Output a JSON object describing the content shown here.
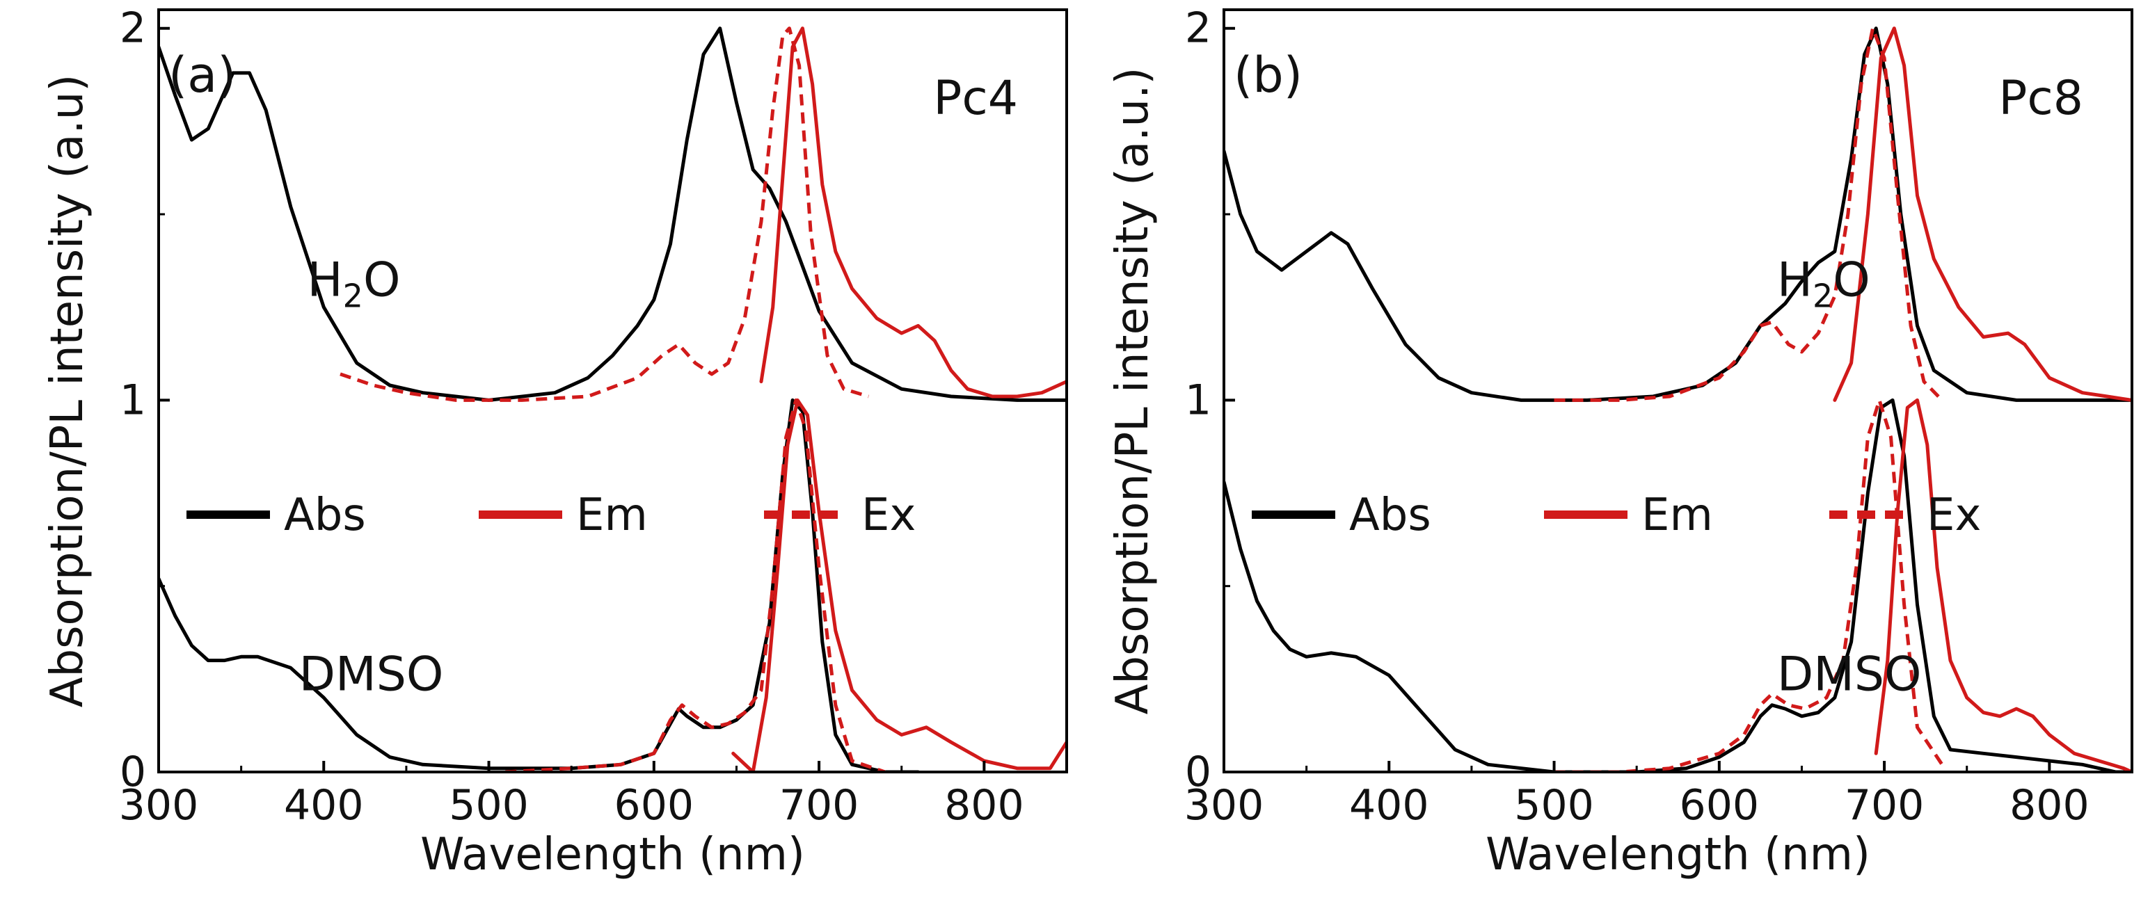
{
  "chart_data": [
    {
      "type": "line",
      "panel_label": "(a)",
      "sample": "Pc4",
      "xlabel": "Wavelength (nm)",
      "ylabel": "Absorption/PL intensity (a.u)",
      "xlim": [
        300,
        850
      ],
      "ylim": [
        0,
        2.05
      ],
      "xticks": [
        "300",
        "400",
        "500",
        "600",
        "700",
        "800"
      ],
      "yticks": [
        "0",
        "1",
        "2"
      ],
      "legend": {
        "placement": "middle-left",
        "entries": [
          {
            "label": "Abs",
            "color": "#000000",
            "dash": "solid"
          },
          {
            "label": "Em",
            "color": "#d11a1a",
            "dash": "solid"
          },
          {
            "label": "Ex",
            "color": "#d11a1a",
            "dash": "dashed"
          }
        ]
      },
      "annotations": [
        {
          "text": "H",
          "sub": "2",
          "tail": "O",
          "x": 390,
          "y": 1.28
        },
        {
          "text": "DMSO",
          "x": 385,
          "y": 0.22
        }
      ],
      "series": [
        {
          "name": "Abs H2O",
          "color": "#000000",
          "dash": "solid",
          "x": [
            300,
            310,
            320,
            330,
            345,
            355,
            365,
            380,
            400,
            420,
            440,
            460,
            500,
            540,
            560,
            575,
            590,
            600,
            610,
            620,
            630,
            640,
            650,
            660,
            670,
            680,
            690,
            700,
            720,
            750,
            780,
            820,
            850
          ],
          "y": [
            1.95,
            1.82,
            1.7,
            1.73,
            1.88,
            1.88,
            1.78,
            1.52,
            1.25,
            1.1,
            1.04,
            1.02,
            1.0,
            1.02,
            1.06,
            1.12,
            1.2,
            1.27,
            1.42,
            1.7,
            1.93,
            2.0,
            1.8,
            1.62,
            1.57,
            1.48,
            1.36,
            1.24,
            1.1,
            1.03,
            1.01,
            1.0,
            1.0
          ]
        },
        {
          "name": "Ex H2O",
          "color": "#d11a1a",
          "dash": "dashed",
          "x": [
            410,
            430,
            450,
            480,
            520,
            560,
            590,
            605,
            615,
            625,
            635,
            645,
            655,
            665,
            672,
            678,
            682,
            688,
            695,
            705,
            715,
            730
          ],
          "y": [
            1.07,
            1.04,
            1.02,
            1.0,
            1.0,
            1.01,
            1.06,
            1.12,
            1.15,
            1.1,
            1.07,
            1.1,
            1.22,
            1.48,
            1.78,
            1.98,
            2.0,
            1.9,
            1.45,
            1.12,
            1.03,
            1.01
          ]
        },
        {
          "name": "Em H2O",
          "color": "#d11a1a",
          "dash": "solid",
          "x": [
            665,
            672,
            678,
            684,
            690,
            696,
            702,
            710,
            720,
            735,
            750,
            760,
            770,
            780,
            790,
            805,
            820,
            835,
            850
          ],
          "y": [
            1.05,
            1.25,
            1.6,
            1.95,
            2.0,
            1.85,
            1.58,
            1.4,
            1.3,
            1.22,
            1.18,
            1.2,
            1.16,
            1.08,
            1.03,
            1.01,
            1.01,
            1.02,
            1.05
          ]
        },
        {
          "name": "Abs DMSO",
          "color": "#000000",
          "dash": "solid",
          "x": [
            300,
            310,
            320,
            330,
            340,
            350,
            360,
            380,
            400,
            420,
            440,
            460,
            500,
            550,
            580,
            600,
            610,
            615,
            620,
            630,
            640,
            650,
            660,
            670,
            678,
            684,
            690,
            696,
            702,
            710,
            720,
            740,
            760
          ],
          "y": [
            0.52,
            0.42,
            0.34,
            0.3,
            0.3,
            0.31,
            0.31,
            0.28,
            0.2,
            0.1,
            0.04,
            0.02,
            0.01,
            0.01,
            0.02,
            0.05,
            0.13,
            0.17,
            0.15,
            0.12,
            0.12,
            0.14,
            0.18,
            0.4,
            0.8,
            1.0,
            0.97,
            0.7,
            0.35,
            0.1,
            0.02,
            0.0,
            0.0
          ]
        },
        {
          "name": "Ex DMSO",
          "color": "#d11a1a",
          "dash": "dashed",
          "x": [
            510,
            550,
            580,
            600,
            610,
            617,
            625,
            635,
            645,
            655,
            665,
            672,
            680,
            686,
            692,
            700,
            710,
            720,
            740
          ],
          "y": [
            0.0,
            0.01,
            0.02,
            0.05,
            0.14,
            0.18,
            0.15,
            0.12,
            0.13,
            0.16,
            0.22,
            0.5,
            0.9,
            1.0,
            0.92,
            0.55,
            0.18,
            0.03,
            0.0
          ]
        },
        {
          "name": "Em DMSO",
          "color": "#d11a1a",
          "dash": "solid",
          "x": [
            648,
            660,
            668,
            675,
            681,
            687,
            693,
            700,
            710,
            720,
            735,
            750,
            765,
            780,
            800,
            820,
            840,
            850
          ],
          "y": [
            0.05,
            0.0,
            0.2,
            0.55,
            0.88,
            1.0,
            0.96,
            0.7,
            0.38,
            0.22,
            0.14,
            0.1,
            0.12,
            0.08,
            0.03,
            0.01,
            0.01,
            0.08
          ]
        }
      ]
    },
    {
      "type": "line",
      "panel_label": "(b)",
      "sample": "Pc8",
      "xlabel": "Wavelength (nm)",
      "ylabel": "Absorption/PL intensity (a.u.)",
      "xlim": [
        300,
        850
      ],
      "ylim": [
        0,
        2.05
      ],
      "xticks": [
        "300",
        "400",
        "500",
        "600",
        "700",
        "800"
      ],
      "yticks": [
        "0",
        "1",
        "2"
      ],
      "legend": {
        "placement": "middle-left",
        "entries": [
          {
            "label": "Abs",
            "color": "#000000",
            "dash": "solid"
          },
          {
            "label": "Em",
            "color": "#d11a1a",
            "dash": "solid"
          },
          {
            "label": "Ex",
            "color": "#d11a1a",
            "dash": "dashed"
          }
        ]
      },
      "annotations": [
        {
          "text": "H",
          "sub": "2",
          "tail": "O",
          "x": 635,
          "y": 1.28
        },
        {
          "text": "DMSO",
          "x": 635,
          "y": 0.22
        }
      ],
      "series": [
        {
          "name": "Abs H2O",
          "color": "#000000",
          "dash": "solid",
          "x": [
            300,
            310,
            320,
            335,
            350,
            365,
            375,
            390,
            410,
            430,
            450,
            480,
            520,
            560,
            590,
            610,
            625,
            640,
            650,
            660,
            670,
            680,
            688,
            695,
            702,
            710,
            720,
            730,
            750,
            780,
            820,
            850
          ],
          "y": [
            1.67,
            1.5,
            1.4,
            1.35,
            1.4,
            1.45,
            1.42,
            1.3,
            1.15,
            1.06,
            1.02,
            1.0,
            1.0,
            1.01,
            1.04,
            1.1,
            1.2,
            1.26,
            1.32,
            1.37,
            1.4,
            1.65,
            1.93,
            2.0,
            1.85,
            1.5,
            1.2,
            1.08,
            1.02,
            1.0,
            1.0,
            1.0
          ]
        },
        {
          "name": "Ex H2O",
          "color": "#d11a1a",
          "dash": "dashed",
          "x": [
            500,
            540,
            570,
            600,
            615,
            625,
            632,
            642,
            650,
            660,
            670,
            678,
            686,
            693,
            700,
            708,
            716,
            724,
            735
          ],
          "y": [
            1.0,
            1.0,
            1.01,
            1.06,
            1.13,
            1.2,
            1.21,
            1.15,
            1.13,
            1.18,
            1.28,
            1.5,
            1.85,
            2.0,
            1.92,
            1.55,
            1.2,
            1.05,
            1.0
          ]
        },
        {
          "name": "Em H2O",
          "color": "#d11a1a",
          "dash": "solid",
          "x": [
            670,
            680,
            690,
            698,
            706,
            712,
            720,
            730,
            745,
            760,
            775,
            785,
            800,
            820,
            835,
            850
          ],
          "y": [
            1.0,
            1.1,
            1.5,
            1.92,
            2.0,
            1.9,
            1.55,
            1.38,
            1.25,
            1.17,
            1.18,
            1.15,
            1.06,
            1.02,
            1.01,
            1.0
          ]
        },
        {
          "name": "Abs DMSO",
          "color": "#000000",
          "dash": "solid",
          "x": [
            300,
            310,
            320,
            330,
            340,
            350,
            365,
            380,
            400,
            420,
            440,
            460,
            500,
            550,
            580,
            600,
            615,
            625,
            632,
            640,
            650,
            660,
            670,
            680,
            690,
            698,
            705,
            712,
            720,
            730,
            740,
            760,
            780,
            800,
            820,
            840,
            850
          ],
          "y": [
            0.78,
            0.6,
            0.46,
            0.38,
            0.33,
            0.31,
            0.32,
            0.31,
            0.26,
            0.16,
            0.06,
            0.02,
            0.0,
            0.0,
            0.01,
            0.04,
            0.08,
            0.15,
            0.18,
            0.17,
            0.15,
            0.16,
            0.2,
            0.35,
            0.75,
            0.98,
            1.0,
            0.85,
            0.45,
            0.15,
            0.06,
            0.05,
            0.04,
            0.03,
            0.02,
            0.0,
            0.0
          ]
        },
        {
          "name": "Ex DMSO",
          "color": "#d11a1a",
          "dash": "dashed",
          "x": [
            500,
            540,
            570,
            600,
            615,
            625,
            632,
            642,
            652,
            665,
            675,
            683,
            690,
            697,
            704,
            712,
            720,
            735
          ],
          "y": [
            0.0,
            0.0,
            0.01,
            0.05,
            0.1,
            0.18,
            0.21,
            0.18,
            0.17,
            0.2,
            0.3,
            0.55,
            0.9,
            1.0,
            0.9,
            0.45,
            0.12,
            0.02
          ]
        },
        {
          "name": "Em DMSO",
          "color": "#d11a1a",
          "dash": "solid",
          "x": [
            695,
            702,
            708,
            714,
            720,
            726,
            732,
            740,
            750,
            760,
            770,
            780,
            790,
            800,
            815,
            830,
            845,
            850
          ],
          "y": [
            0.05,
            0.3,
            0.7,
            0.98,
            1.0,
            0.88,
            0.55,
            0.3,
            0.2,
            0.16,
            0.15,
            0.17,
            0.15,
            0.1,
            0.05,
            0.03,
            0.01,
            0.0
          ]
        }
      ]
    }
  ]
}
